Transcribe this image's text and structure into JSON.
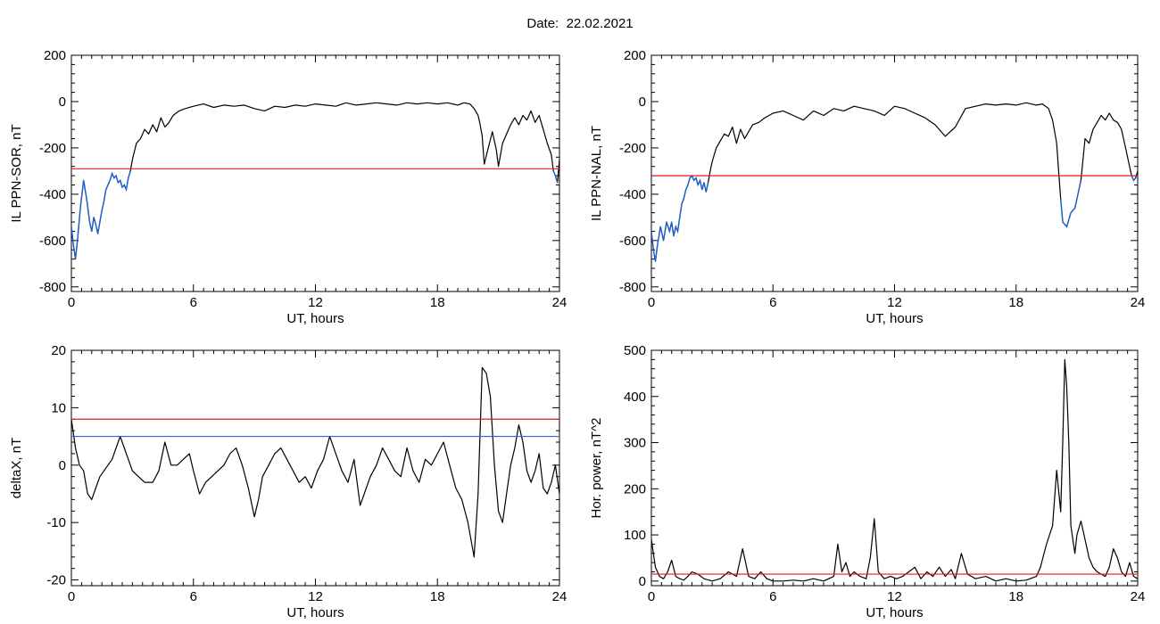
{
  "header": {
    "date_label": "Date:",
    "date_value": "22.02.2021"
  },
  "colors": {
    "trace": "#000000",
    "threshold_red": "#e41a1c",
    "threshold_blue": "#1f6fd6",
    "below_threshold": "#1f5fcf",
    "green_trace": "#2ca02c"
  },
  "chart_data": [
    {
      "id": "p1",
      "type": "line",
      "title": "",
      "xlabel": "UT, hours",
      "ylabel": "IL PPN-SOR, nT",
      "xlim": [
        0,
        24
      ],
      "ylim": [
        -820,
        200
      ],
      "xticks": [
        0,
        6,
        12,
        18,
        24
      ],
      "yticks": [
        200,
        0,
        -200,
        -400,
        -600,
        -800
      ],
      "grid": false,
      "thresholds": [
        {
          "value": -290,
          "color": "red"
        }
      ],
      "series": [
        {
          "color": "black",
          "below_threshold_color": "blue",
          "x": [
            0,
            0.1,
            0.2,
            0.3,
            0.45,
            0.6,
            0.75,
            0.9,
            1.0,
            1.1,
            1.2,
            1.3,
            1.4,
            1.5,
            1.6,
            1.7,
            1.8,
            1.9,
            2.0,
            2.1,
            2.2,
            2.3,
            2.4,
            2.5,
            2.6,
            2.7,
            2.8,
            2.9,
            3.0,
            3.2,
            3.4,
            3.6,
            3.8,
            4.0,
            4.2,
            4.4,
            4.6,
            4.8,
            5.0,
            5.3,
            5.6,
            6.0,
            6.5,
            7.0,
            7.5,
            8.0,
            8.5,
            9.0,
            9.5,
            10.0,
            10.5,
            11.0,
            11.5,
            12.0,
            12.5,
            13.0,
            13.5,
            14.0,
            14.5,
            15.0,
            15.5,
            16.0,
            16.5,
            17.0,
            17.5,
            18.0,
            18.5,
            19.0,
            19.3,
            19.6,
            19.8,
            20.0,
            20.1,
            20.2,
            20.3,
            20.5,
            20.7,
            20.9,
            21.0,
            21.2,
            21.4,
            21.6,
            21.8,
            22.0,
            22.2,
            22.4,
            22.6,
            22.8,
            23.0,
            23.2,
            23.4,
            23.6,
            23.7,
            23.8,
            23.9,
            24.0
          ],
          "y": [
            -540,
            -620,
            -680,
            -600,
            -450,
            -340,
            -420,
            -520,
            -560,
            -500,
            -530,
            -570,
            -520,
            -470,
            -430,
            -380,
            -360,
            -340,
            -310,
            -330,
            -320,
            -350,
            -340,
            -370,
            -360,
            -380,
            -330,
            -300,
            -250,
            -180,
            -160,
            -120,
            -140,
            -100,
            -130,
            -70,
            -110,
            -90,
            -60,
            -40,
            -30,
            -20,
            -10,
            -25,
            -15,
            -20,
            -15,
            -30,
            -40,
            -20,
            -25,
            -15,
            -20,
            -10,
            -15,
            -20,
            -5,
            -15,
            -10,
            -5,
            -10,
            -15,
            -5,
            -10,
            -5,
            -10,
            -5,
            -15,
            -5,
            -10,
            -30,
            -60,
            -100,
            -150,
            -270,
            -200,
            -130,
            -210,
            -280,
            -180,
            -140,
            -100,
            -70,
            -100,
            -60,
            -80,
            -40,
            -90,
            -60,
            -120,
            -180,
            -230,
            -300,
            -320,
            -350,
            -250
          ]
        }
      ]
    },
    {
      "id": "p2",
      "type": "line",
      "title": "",
      "xlabel": "UT, hours",
      "ylabel": "IL PPN-NAL, nT",
      "xlim": [
        0,
        24
      ],
      "ylim": [
        -820,
        200
      ],
      "xticks": [
        0,
        6,
        12,
        18,
        24
      ],
      "yticks": [
        200,
        0,
        -200,
        -400,
        -600,
        -800
      ],
      "grid": false,
      "thresholds": [
        {
          "value": -320,
          "color": "red"
        }
      ],
      "series": [
        {
          "color": "black",
          "below_threshold_color": "blue",
          "x": [
            0,
            0.1,
            0.2,
            0.3,
            0.45,
            0.6,
            0.75,
            0.9,
            1.0,
            1.1,
            1.2,
            1.3,
            1.4,
            1.5,
            1.6,
            1.7,
            1.8,
            1.9,
            2.0,
            2.1,
            2.2,
            2.3,
            2.4,
            2.5,
            2.6,
            2.7,
            2.8,
            2.9,
            3.0,
            3.2,
            3.4,
            3.6,
            3.8,
            4.0,
            4.2,
            4.4,
            4.6,
            4.8,
            5.0,
            5.3,
            5.6,
            6.0,
            6.5,
            7.0,
            7.5,
            8.0,
            8.5,
            9.0,
            9.5,
            10.0,
            10.5,
            11.0,
            11.5,
            12.0,
            12.5,
            13.0,
            13.5,
            14.0,
            14.5,
            15.0,
            15.5,
            16.0,
            16.5,
            17.0,
            17.5,
            18.0,
            18.5,
            19.0,
            19.3,
            19.6,
            19.8,
            20.0,
            20.1,
            20.2,
            20.3,
            20.5,
            20.7,
            20.9,
            21.0,
            21.2,
            21.4,
            21.6,
            21.8,
            22.0,
            22.2,
            22.4,
            22.6,
            22.8,
            23.0,
            23.2,
            23.4,
            23.6,
            23.7,
            23.8,
            23.9,
            24.0
          ],
          "y": [
            -560,
            -640,
            -690,
            -620,
            -540,
            -600,
            -520,
            -560,
            -520,
            -580,
            -540,
            -560,
            -500,
            -440,
            -420,
            -380,
            -360,
            -330,
            -320,
            -340,
            -330,
            -360,
            -340,
            -380,
            -350,
            -390,
            -350,
            -300,
            -260,
            -200,
            -170,
            -140,
            -150,
            -110,
            -180,
            -120,
            -160,
            -130,
            -100,
            -90,
            -70,
            -50,
            -40,
            -60,
            -80,
            -40,
            -60,
            -30,
            -40,
            -20,
            -30,
            -40,
            -60,
            -20,
            -30,
            -50,
            -70,
            -100,
            -150,
            -110,
            -30,
            -20,
            -10,
            -15,
            -10,
            -15,
            -5,
            -15,
            -10,
            -30,
            -80,
            -180,
            -300,
            -420,
            -520,
            -540,
            -480,
            -460,
            -420,
            -340,
            -160,
            -180,
            -120,
            -90,
            -60,
            -80,
            -50,
            -80,
            -90,
            -120,
            -200,
            -280,
            -320,
            -340,
            -330,
            -300
          ]
        }
      ]
    },
    {
      "id": "p3",
      "type": "line",
      "title": "",
      "xlabel": "UT, hours",
      "ylabel": "deltaX, nT",
      "xlim": [
        0,
        24
      ],
      "ylim": [
        -21,
        20
      ],
      "xticks": [
        0,
        6,
        12,
        18,
        24
      ],
      "yticks": [
        20,
        10,
        0,
        -10,
        -20
      ],
      "grid": false,
      "thresholds": [
        {
          "value": 8,
          "color": "red"
        },
        {
          "value": 5,
          "color": "blue"
        }
      ],
      "series": [
        {
          "color": "black",
          "x": [
            0,
            0.2,
            0.4,
            0.6,
            0.8,
            1.0,
            1.2,
            1.4,
            1.6,
            1.8,
            2.0,
            2.2,
            2.4,
            2.6,
            2.8,
            3.0,
            3.3,
            3.6,
            4.0,
            4.3,
            4.6,
            4.9,
            5.2,
            5.5,
            5.8,
            6.0,
            6.3,
            6.6,
            6.9,
            7.2,
            7.5,
            7.8,
            8.1,
            8.4,
            8.7,
            9.0,
            9.2,
            9.4,
            9.7,
            10.0,
            10.3,
            10.6,
            10.9,
            11.2,
            11.5,
            11.8,
            12.1,
            12.4,
            12.7,
            13.0,
            13.3,
            13.6,
            13.9,
            14.2,
            14.4,
            14.7,
            15.0,
            15.3,
            15.6,
            15.9,
            16.2,
            16.5,
            16.8,
            17.1,
            17.4,
            17.7,
            18.0,
            18.3,
            18.6,
            18.9,
            19.2,
            19.5,
            19.8,
            20.0,
            20.2,
            20.4,
            20.6,
            20.8,
            21.0,
            21.2,
            21.4,
            21.6,
            21.8,
            22.0,
            22.2,
            22.4,
            22.6,
            22.8,
            23.0,
            23.2,
            23.4,
            23.6,
            23.8,
            24.0
          ],
          "y": [
            8,
            3,
            0,
            -1,
            -5,
            -6,
            -4,
            -2,
            -1,
            0,
            1,
            3,
            5,
            3,
            1,
            -1,
            -2,
            -3,
            -3,
            -1,
            4,
            0,
            0,
            1,
            2,
            -1,
            -5,
            -3,
            -2,
            -1,
            0,
            2,
            3,
            0,
            -4,
            -9,
            -6,
            -2,
            0,
            2,
            3,
            1,
            -1,
            -3,
            -2,
            -4,
            -1,
            1,
            5,
            2,
            -1,
            -3,
            1,
            -7,
            -5,
            -2,
            0,
            3,
            1,
            -1,
            -2,
            3,
            -1,
            -3,
            1,
            0,
            2,
            4,
            0,
            -4,
            -6,
            -10,
            -16,
            -5,
            17,
            16,
            12,
            0,
            -8,
            -10,
            -5,
            0,
            3,
            7,
            4,
            -1,
            -3,
            -1,
            2,
            -4,
            -5,
            -3,
            0,
            -5
          ]
        }
      ]
    },
    {
      "id": "p4",
      "type": "line",
      "title": "",
      "xlabel": "UT, hours",
      "ylabel": "Hor. power, nT^2",
      "xlim": [
        0,
        24
      ],
      "ylim": [
        -10,
        500
      ],
      "xticks": [
        0,
        6,
        12,
        18,
        24
      ],
      "yticks": [
        500,
        400,
        300,
        200,
        100,
        0
      ],
      "grid": false,
      "thresholds": [
        {
          "value": 15,
          "color": "red"
        }
      ],
      "series": [
        {
          "color": "black",
          "x": [
            0,
            0.2,
            0.4,
            0.6,
            0.8,
            1.0,
            1.2,
            1.4,
            1.6,
            1.8,
            2.0,
            2.3,
            2.6,
            3.0,
            3.4,
            3.8,
            4.2,
            4.5,
            4.8,
            5.1,
            5.4,
            5.7,
            6.0,
            6.5,
            7.0,
            7.5,
            8.0,
            8.5,
            9.0,
            9.2,
            9.4,
            9.6,
            9.8,
            10.0,
            10.3,
            10.6,
            10.8,
            11.0,
            11.2,
            11.5,
            11.8,
            12.1,
            12.4,
            12.7,
            13.0,
            13.3,
            13.6,
            13.9,
            14.2,
            14.5,
            14.8,
            15.0,
            15.3,
            15.6,
            16.0,
            16.5,
            17.0,
            17.5,
            18.0,
            18.5,
            19.0,
            19.2,
            19.5,
            19.8,
            20.0,
            20.2,
            20.3,
            20.4,
            20.5,
            20.6,
            20.7,
            20.8,
            20.9,
            21.0,
            21.2,
            21.4,
            21.6,
            21.8,
            22.0,
            22.2,
            22.4,
            22.6,
            22.8,
            23.0,
            23.2,
            23.4,
            23.6,
            23.8,
            24.0
          ],
          "y": [
            90,
            30,
            10,
            5,
            20,
            45,
            10,
            5,
            2,
            10,
            20,
            15,
            5,
            0,
            5,
            20,
            10,
            70,
            10,
            5,
            20,
            5,
            0,
            0,
            2,
            0,
            5,
            0,
            10,
            80,
            20,
            40,
            10,
            20,
            10,
            5,
            50,
            135,
            20,
            5,
            10,
            5,
            10,
            20,
            30,
            5,
            20,
            10,
            30,
            10,
            25,
            5,
            60,
            15,
            5,
            10,
            0,
            5,
            0,
            2,
            10,
            30,
            80,
            120,
            240,
            150,
            300,
            480,
            420,
            300,
            120,
            90,
            60,
            100,
            130,
            90,
            50,
            30,
            20,
            15,
            10,
            30,
            70,
            50,
            20,
            10,
            40,
            10,
            5
          ]
        }
      ]
    }
  ]
}
